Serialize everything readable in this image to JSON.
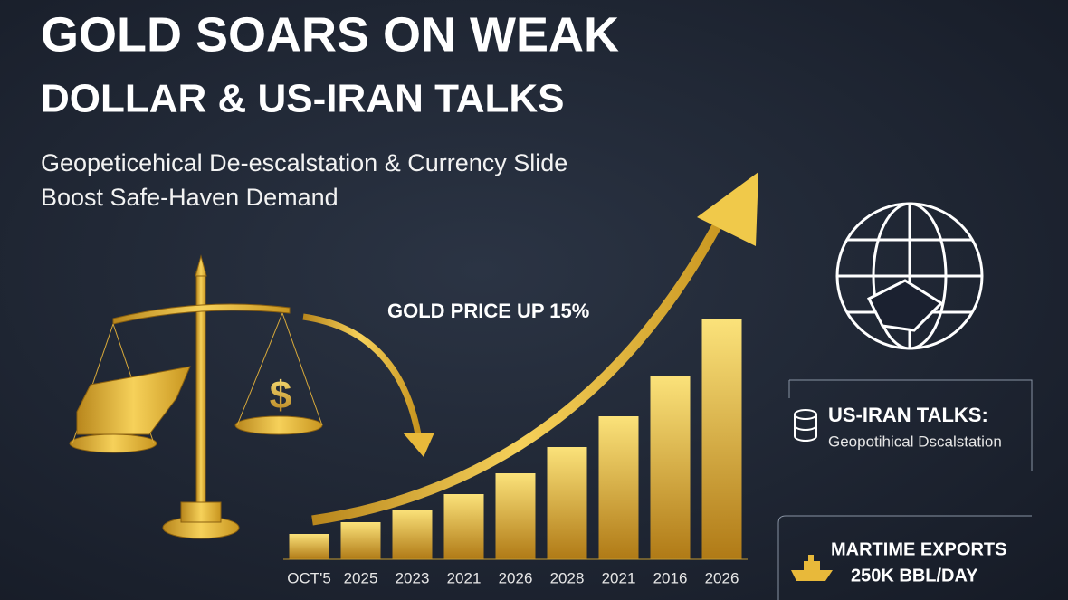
{
  "chart_data": {
    "type": "bar",
    "title": [
      "GOLD SOARS ON WEAK",
      "DOLLAR & US-IRAN TALKS"
    ],
    "subtitle": [
      "Geopeticehical De-escalstation & Currency Slide",
      "Boost Safe-Haven Demand"
    ],
    "annotation": "GOLD PRICE UP 15%",
    "categories": [
      "OCT'5",
      "2025",
      "2023",
      "2021",
      "2026",
      "2028",
      "2021",
      "2016",
      "2026"
    ],
    "values": [
      28,
      41,
      55,
      72,
      95,
      124,
      158,
      203,
      265
    ],
    "ylim": [
      0,
      300
    ],
    "color": "#e8b93a",
    "panels": [
      {
        "heading": "US-IRAN TALKS:",
        "text": "Geopotihical Dscalstation"
      },
      {
        "heading": "MARTIME EXPORTS",
        "text": "250K BBL/DAY"
      }
    ]
  }
}
